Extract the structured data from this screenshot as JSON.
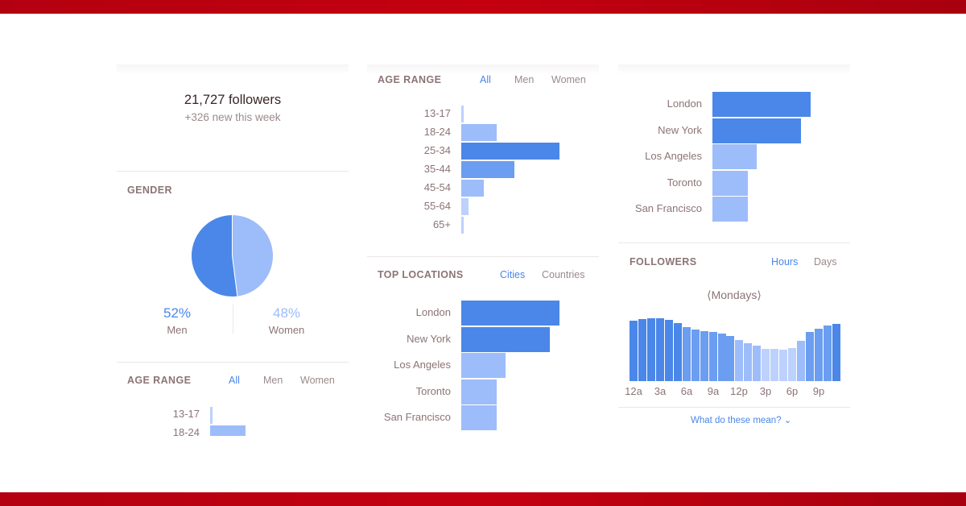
{
  "summary": {
    "followers": "21,727 followers",
    "new_this_week": "+326 new this week"
  },
  "gender": {
    "title": "GENDER",
    "men_pct": "52%",
    "men_label": "Men",
    "women_pct": "48%",
    "women_label": "Women",
    "men_share": 0.52,
    "colors": {
      "men": "#4a87e8",
      "women": "#9dbcfa"
    }
  },
  "age_range": {
    "title": "AGE RANGE",
    "filters": [
      "All",
      "Men",
      "Women"
    ],
    "active_filter": "All",
    "groups": [
      {
        "label": "13-17",
        "value": 1
      },
      {
        "label": "18-24",
        "value": 14
      },
      {
        "label": "25-34",
        "value": 39
      },
      {
        "label": "35-44",
        "value": 21
      },
      {
        "label": "45-54",
        "value": 9
      },
      {
        "label": "55-64",
        "value": 3
      },
      {
        "label": "65+",
        "value": 1
      }
    ],
    "max": 39
  },
  "top_locations": {
    "title": "TOP LOCATIONS",
    "filters": [
      "Cities",
      "Countries"
    ],
    "active_filter": "Cities",
    "cities": [
      {
        "label": "London",
        "value": 100
      },
      {
        "label": "New York",
        "value": 90
      },
      {
        "label": "Los Angeles",
        "value": 45
      },
      {
        "label": "Toronto",
        "value": 36
      },
      {
        "label": "San Francisco",
        "value": 36
      }
    ]
  },
  "followers_activity": {
    "title": "FOLLOWERS",
    "filters": [
      "Hours",
      "Days"
    ],
    "active_filter": "Hours",
    "day": "Mondays",
    "prev_symbol": "⟨",
    "next_symbol": "⟩",
    "hour_ticks": [
      "12a",
      "3a",
      "6a",
      "9a",
      "12p",
      "3p",
      "6p",
      "9p"
    ],
    "hourly": [
      75,
      77,
      78,
      78,
      76,
      72,
      67,
      64,
      62,
      61,
      59,
      56,
      51,
      47,
      44,
      40,
      40,
      39,
      41,
      50,
      61,
      65,
      69,
      71
    ],
    "max": 80,
    "help_link": "What do these mean? ⌄"
  },
  "palette": {
    "bar_levels": [
      "#4a87e8",
      "#6b9df0",
      "#9dbcfa",
      "#bcd1fc",
      "#d6e3fd"
    ],
    "accent": "#4a87e8",
    "brand_band": "#c40010"
  }
}
